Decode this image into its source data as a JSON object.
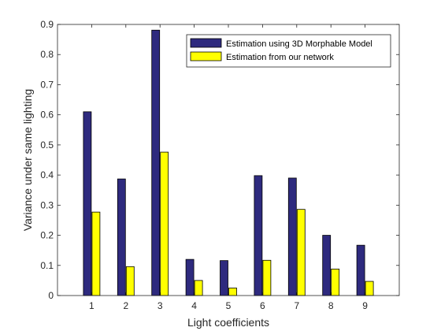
{
  "chart_data": {
    "type": "bar",
    "title": "",
    "xlabel": "Light coefficients",
    "ylabel": "Variance under same lighting",
    "categories": [
      "1",
      "2",
      "3",
      "4",
      "5",
      "6",
      "7",
      "8",
      "9"
    ],
    "ylim": [
      0,
      0.9
    ],
    "yticks": [
      "0",
      "0.1",
      "0.2",
      "0.3",
      "0.4",
      "0.5",
      "0.6",
      "0.7",
      "0.8",
      "0.9"
    ],
    "grid": false,
    "legend_position": "top-right",
    "series": [
      {
        "name": "Estimation using 3D Morphable Model",
        "color": "#2e2a7e",
        "values": [
          0.61,
          0.387,
          0.881,
          0.12,
          0.116,
          0.398,
          0.39,
          0.2,
          0.167
        ]
      },
      {
        "name": "Estimation from our network",
        "color": "#ffff00",
        "values": [
          0.277,
          0.096,
          0.476,
          0.05,
          0.025,
          0.117,
          0.286,
          0.088,
          0.047
        ]
      }
    ]
  }
}
